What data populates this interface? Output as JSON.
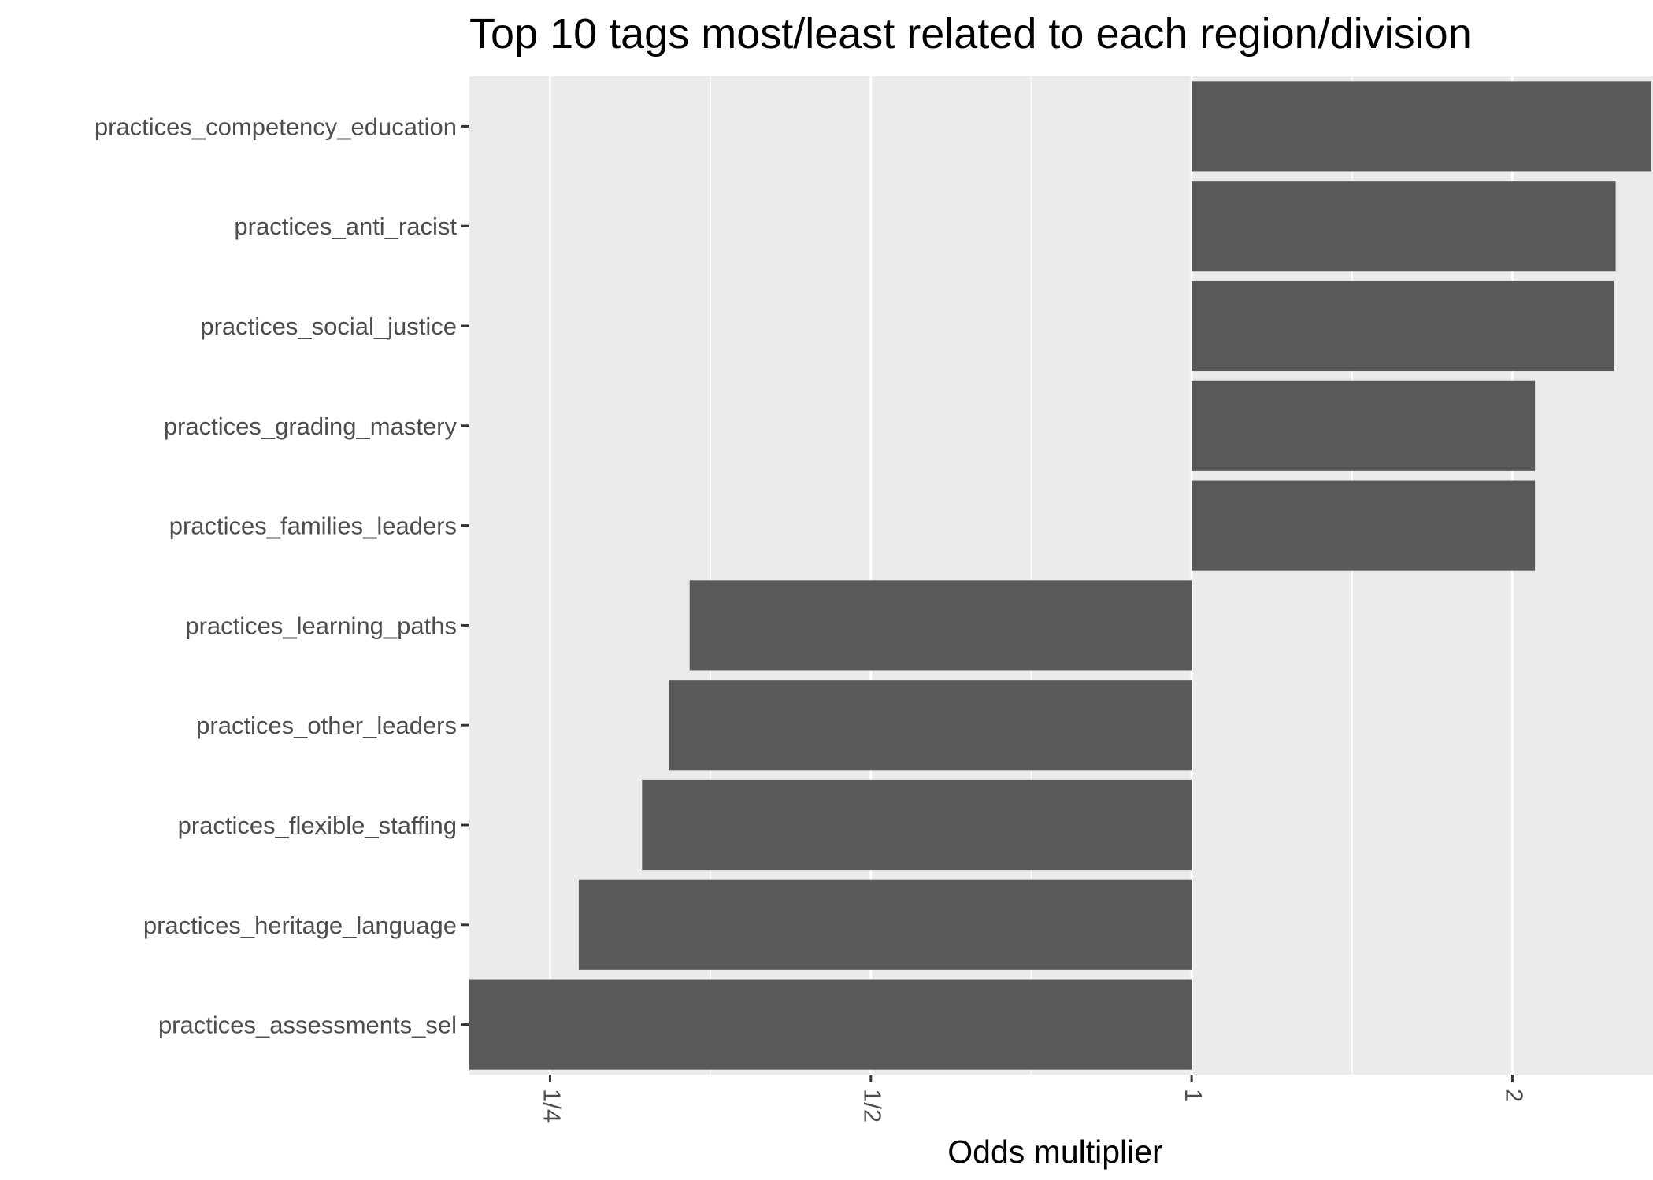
{
  "chart_data": {
    "type": "bar",
    "orientation": "horizontal",
    "title": "Top 10 tags most/least related to each region/division",
    "xlabel": "Odds multiplier",
    "ylabel": "",
    "x_scale": "log2",
    "xlim": [
      0.21,
      2.71
    ],
    "baseline": 1,
    "x_ticks": [
      {
        "value": 0.25,
        "label": "1/4"
      },
      {
        "value": 0.5,
        "label": "1/2"
      },
      {
        "value": 1,
        "label": "1"
      },
      {
        "value": 2,
        "label": "2"
      }
    ],
    "x_minor_ticks": [
      0.3536,
      0.7071,
      1.4142
    ],
    "grid": true,
    "legend": "none",
    "categories": [
      "practices_competency_education",
      "practices_anti_racist",
      "practices_social_justice",
      "practices_grading_mastery",
      "practices_families_leaders",
      "practices_learning_paths",
      "practices_other_leaders",
      "practices_flexible_staffing",
      "practices_heritage_language",
      "practices_assessments_sel"
    ],
    "values": [
      2.7,
      2.5,
      2.49,
      2.1,
      2.1,
      0.338,
      0.323,
      0.305,
      0.266,
      0.205
    ],
    "colors": {
      "bar": "#595959",
      "panel": "#ebebeb",
      "grid": "#ffffff",
      "text": "#000000",
      "axis_text": "#4d4d4d"
    }
  }
}
